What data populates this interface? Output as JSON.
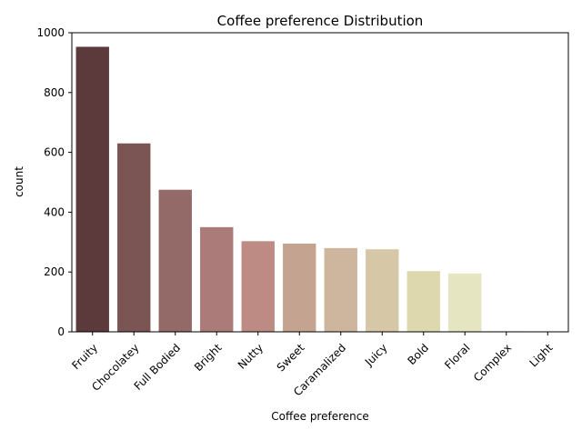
{
  "chart_data": {
    "type": "bar",
    "title": "Coffee preference Distribution",
    "xlabel": "Coffee preference",
    "ylabel": "count",
    "ylim": [
      0,
      1000
    ],
    "yticks": [
      0,
      200,
      400,
      600,
      800,
      1000
    ],
    "grid": false,
    "legend": "none",
    "categories": [
      "Fruity",
      "Chocolatey",
      "Full Bodied",
      "Bright",
      "Nutty",
      "Sweet",
      "Caramalized",
      "Juicy",
      "Bold",
      "Floral",
      "Complex",
      "Light"
    ],
    "values": [
      953,
      630,
      475,
      350,
      303,
      295,
      280,
      276,
      203,
      195,
      2,
      1
    ],
    "colors": [
      "#5c3a3c",
      "#7b5553",
      "#946a68",
      "#ab7b7a",
      "#bd8b84",
      "#c5a391",
      "#ceb59d",
      "#d6c8a7",
      "#ddd8ae",
      "#e5e6c1",
      "#e0dcc0",
      "#e5e6c1"
    ]
  }
}
